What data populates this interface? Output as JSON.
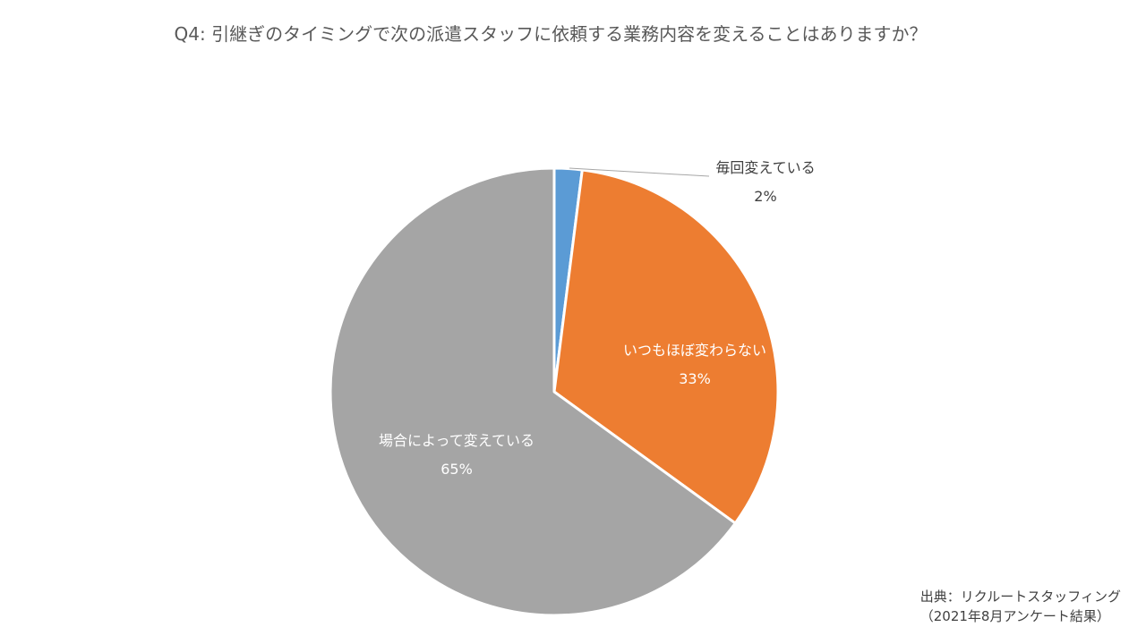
{
  "chart_data": {
    "type": "pie",
    "title": "Q4: 引継ぎのタイミングで次の派遣スタッフに依頼する業務内容を変えることはありますか？",
    "slices": [
      {
        "name": "毎回変えている",
        "value": 2,
        "label": "2%",
        "color": "#5b9bd5"
      },
      {
        "name": "いつもほぼ変わらない",
        "value": 33,
        "label": "33%",
        "color": "#ed7d31"
      },
      {
        "name": "場合によって変えている",
        "value": 65,
        "label": "65%",
        "color": "#a5a5a5"
      }
    ],
    "legend": "none"
  },
  "source": {
    "line1": "出典：リクルートスタッフィング",
    "line2": "（2021年8月アンケート結果）"
  }
}
